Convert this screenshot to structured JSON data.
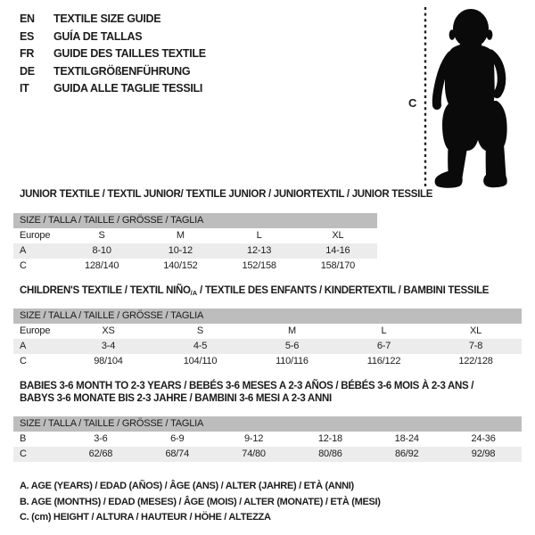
{
  "colors": {
    "background": "#ffffff",
    "text": "#1c1c1c",
    "size_bar_bg": "#bdbdbd",
    "row_shaded_bg": "#ececec",
    "silhouette": "#0a0a0a"
  },
  "language_guide": [
    {
      "code": "EN",
      "title": "TEXTILE SIZE GUIDE"
    },
    {
      "code": "ES",
      "title": "GUÍA DE TALLAS"
    },
    {
      "code": "FR",
      "title": "GUIDE DES TAILLES TEXTILE"
    },
    {
      "code": "DE",
      "title": "TEXTILGRÖßENFÜHRUNG"
    },
    {
      "code": "IT",
      "title": "GUIDA ALLE TAGLIE TESSILI"
    }
  ],
  "height_figure": {
    "label": "C"
  },
  "sections": [
    {
      "title_lines": [
        [
          {
            "text": "JUNIOR TEXTILE / TEXTIL JUNIOR/ TEXTILE JUNIOR / JUNIORTEXTIL / JUNIOR TESSILE"
          }
        ]
      ],
      "size_header": "SIZE / TALLA / TAILLE / GRÖSSE / TAGLIA",
      "rows": [
        {
          "label": "Europe",
          "cells": [
            "S",
            "M",
            "L",
            "XL"
          ],
          "shaded": false
        },
        {
          "label": "A",
          "cells": [
            "8-10",
            "10-12",
            "12-13",
            "14-16"
          ],
          "shaded": true
        },
        {
          "label": "C",
          "cells": [
            "128/140",
            "140/152",
            "152/158",
            "158/170"
          ],
          "shaded": false
        }
      ]
    },
    {
      "title_lines": [
        [
          {
            "text": "CHILDREN'S TEXTILE / TEXTIL NIÑO"
          },
          {
            "text": "/A",
            "sub": true
          },
          {
            "text": " / TEXTILE DES ENFANTS / KINDERTEXTIL / BAMBINI TESSILE"
          }
        ]
      ],
      "size_header": "SIZE / TALLA / TAILLE / GRÖSSE / TAGLIA",
      "rows": [
        {
          "label": "Europe",
          "cells": [
            "XS",
            "S",
            "M",
            "L",
            "XL"
          ],
          "shaded": false
        },
        {
          "label": "A",
          "cells": [
            "3-4",
            "4-5",
            "5-6",
            "6-7",
            "7-8"
          ],
          "shaded": true
        },
        {
          "label": "C",
          "cells": [
            "98/104",
            "104/110",
            "110/116",
            "116/122",
            "122/128"
          ],
          "shaded": false
        }
      ]
    },
    {
      "title_lines": [
        [
          {
            "text": "BABIES 3-6 MONTH TO 2-3 YEARS / BEBÉS 3-6 MESES A 2-3 AÑOS / BÉBÉS 3-6 MOIS À 2-3 ANS /"
          }
        ],
        [
          {
            "text": "BABYS 3-6 MONATE BIS 2-3 JAHRE / BAMBINI 3-6 MESI A 2-3 ANNI"
          }
        ]
      ],
      "size_header": "SIZE / TALLA / TAILLE / GRÖSSE / TAGLIA",
      "rows": [
        {
          "label": "B",
          "cells": [
            "3-6",
            "6-9",
            "9-12",
            "12-18",
            "18-24",
            "24-36"
          ],
          "shaded": false
        },
        {
          "label": "C",
          "cells": [
            "62/68",
            "68/74",
            "74/80",
            "80/86",
            "86/92",
            "92/98"
          ],
          "shaded": true
        }
      ]
    }
  ],
  "footnotes": [
    "A. AGE (YEARS) / EDAD (AÑOS) / ÂGE (ANS) / ALTER (JAHRE) / ETÀ (ANNI)",
    "B. AGE (MONTHS) / EDAD (MESES) / ÂGE (MOIS) / ALTER (MONATE) / ETÀ (MESI)",
    "C. (cm) HEIGHT / ALTURA / HAUTEUR / HÖHE / ALTEZZA"
  ]
}
